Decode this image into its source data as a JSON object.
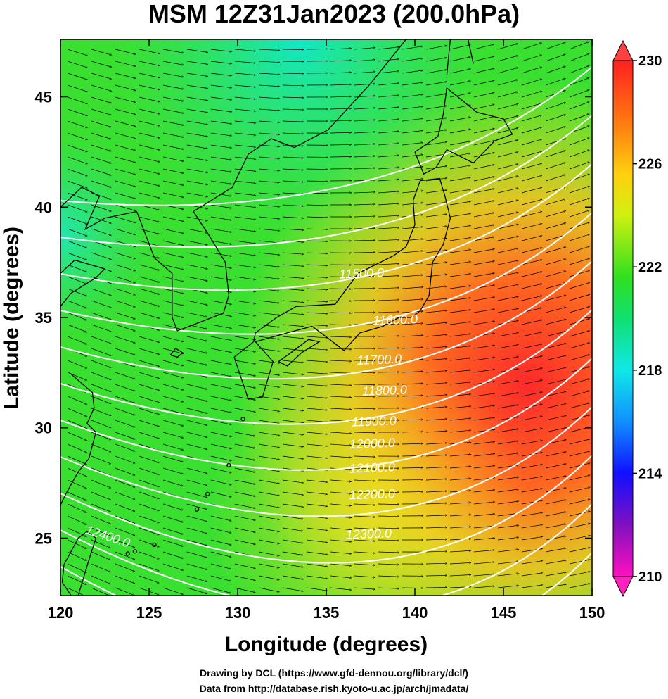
{
  "title": "MSM 12Z31Jan2023 (200.0hPa)",
  "map": {
    "xlabel": "Longitude (degrees)",
    "ylabel": "Latitude  (degrees)",
    "lon_range": [
      120,
      150
    ],
    "lat_range": [
      22.4,
      47.6
    ],
    "lon_ticks": [
      "120",
      "125",
      "130",
      "135",
      "140",
      "145",
      "150"
    ],
    "lat_ticks": [
      "25",
      "30",
      "35",
      "40",
      "45"
    ],
    "contour_labels": [
      {
        "text": "11500.0",
        "lon": 137.0,
        "lat": 36.8
      },
      {
        "text": "11600.0",
        "lon": 138.9,
        "lat": 34.7
      },
      {
        "text": "11700.0",
        "lon": 138.0,
        "lat": 32.9
      },
      {
        "text": "11800.0",
        "lon": 138.3,
        "lat": 31.5
      },
      {
        "text": "11900.0",
        "lon": 137.7,
        "lat": 30.1
      },
      {
        "text": "12000.0",
        "lon": 137.6,
        "lat": 29.1
      },
      {
        "text": "12100.0",
        "lon": 137.6,
        "lat": 28.0
      },
      {
        "text": "12200.0",
        "lon": 137.6,
        "lat": 26.8
      },
      {
        "text": "12300.0",
        "lon": 137.4,
        "lat": 25.0
      },
      {
        "text": "12400.0",
        "lon": 122.6,
        "lat": 24.9
      }
    ],
    "colors": {
      "low": "#00e8c8",
      "mid": "#22e020",
      "high": "#ff3030"
    }
  },
  "colorbar": {
    "labels": [
      "230",
      "226",
      "222",
      "218",
      "214",
      "210"
    ],
    "range": [
      210,
      230
    ]
  },
  "credits": {
    "line1": "Drawing by DCL (https://www.gfd-dennou.org/library/dcl/)",
    "line2": "Data from http://database.rish.kyoto-u.ac.jp/arch/jmadata/"
  }
}
